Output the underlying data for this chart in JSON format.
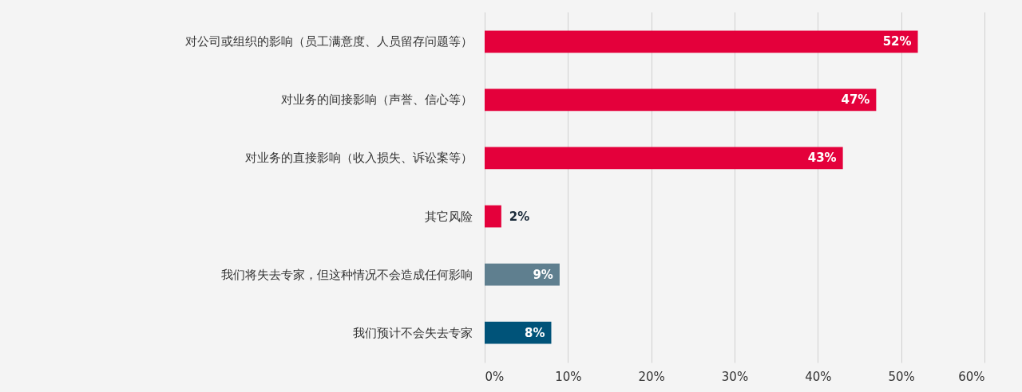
{
  "chart_data": {
    "type": "bar",
    "orientation": "horizontal",
    "categories": [
      "对公司或组织的影响（员工满意度、人员留存问题等）",
      "对业务的间接影响（声誉、信心等）",
      "对业务的直接影响（收入损失、诉讼案等）",
      "其它风险",
      "我们将失去专家，但这种情况不会造成任何影响",
      "我们预计不会失去专家"
    ],
    "values": [
      52,
      47,
      43,
      2,
      9,
      8
    ],
    "colors": [
      "#e4003b",
      "#e4003b",
      "#e4003b",
      "#e4003b",
      "#5f7f8f",
      "#005379"
    ],
    "value_labels": [
      "52%",
      "47%",
      "43%",
      "2%",
      "9%",
      "8%"
    ],
    "xlim": [
      0,
      60
    ],
    "xticks": [
      {
        "value": 0,
        "label": "0%"
      },
      {
        "value": 10,
        "label": "10%"
      },
      {
        "value": 20,
        "label": "20%"
      },
      {
        "value": 30,
        "label": "30%"
      },
      {
        "value": 40,
        "label": "40%"
      },
      {
        "value": 50,
        "label": "50%"
      },
      {
        "value": 60,
        "label": "60%"
      }
    ],
    "grid": "x"
  }
}
